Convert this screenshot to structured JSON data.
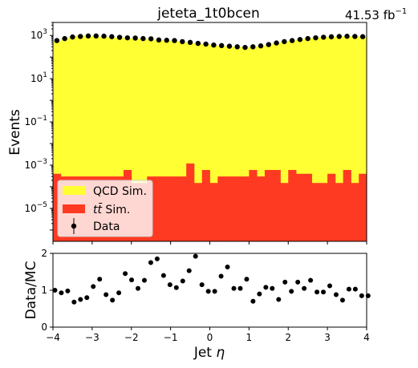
{
  "chart_data": {
    "type": "bar",
    "title": "jeteta_1t0bcen",
    "lumi_text": "41.53 fb",
    "lumi_unit_sup": "−1",
    "x": {
      "label": "Jet",
      "label_symbol": "η",
      "range": [
        -4,
        4
      ],
      "ticks": [
        -4,
        -3,
        -2,
        -1,
        0,
        1,
        2,
        3,
        4
      ],
      "tick_labels": [
        "−4",
        "−3",
        "−2",
        "−1",
        "0",
        "1",
        "2",
        "3",
        "4"
      ],
      "bin_edges_start": -4,
      "bin_width": 0.2
    },
    "main_panel": {
      "ylabel": "Events",
      "yscale": "log",
      "ylim": [
        3e-07,
        4000
      ],
      "ytick_exponents": [
        -5,
        -3,
        -1,
        1,
        3
      ],
      "ytick_base": "10",
      "series": [
        {
          "name": "QCD Sim.",
          "kind": "stacked-bar",
          "color": "#ffff33",
          "values": [
            550,
            700,
            900,
            1000,
            950,
            900,
            850,
            800,
            780,
            750,
            720,
            680,
            650,
            600,
            580,
            550,
            500,
            450,
            420,
            400,
            350,
            330,
            300,
            300,
            280,
            300,
            330,
            380,
            450,
            520,
            580,
            650,
            720,
            780,
            830,
            870,
            900,
            920,
            930,
            900
          ]
        },
        {
          "name": "tt̄ Sim.",
          "kind": "stacked-bar",
          "color": "#ff3a22",
          "values": [
            0.0004,
            0.0003,
            0.0003,
            0.0003,
            0.0003,
            0.0003,
            0.0003,
            0.0003,
            0.0003,
            0.0006,
            0.00015,
            0.00015,
            0.0003,
            0.0003,
            0.0003,
            0.0003,
            0.0003,
            0.0012,
            0.00015,
            0.0006,
            0.00015,
            0.0003,
            0.0003,
            0.0003,
            0.0003,
            0.0006,
            0.0003,
            0.0006,
            0.0006,
            0.00015,
            0.0006,
            0.0004,
            0.0004,
            0.00015,
            0.00015,
            0.0004,
            0.00015,
            0.0006,
            0.00015,
            0.0004
          ]
        },
        {
          "name": "Data",
          "kind": "points",
          "color": "#000000",
          "values": [
            580,
            720,
            850,
            900,
            950,
            950,
            930,
            880,
            820,
            780,
            760,
            720,
            700,
            620,
            600,
            580,
            520,
            480,
            430,
            400,
            360,
            340,
            320,
            300,
            280,
            300,
            330,
            380,
            450,
            520,
            580,
            650,
            720,
            780,
            830,
            870,
            900,
            920,
            900,
            880
          ]
        }
      ],
      "legend": {
        "position": "lower-left",
        "entries": [
          {
            "label": "QCD Sim.",
            "symbol": "patch",
            "color": "#ffff33"
          },
          {
            "label": "Sim.",
            "prefix": "tt̄",
            "symbol": "patch",
            "color": "#ff3a22"
          },
          {
            "label": "Data",
            "symbol": "errorbar",
            "color": "#000000"
          }
        ]
      }
    },
    "ratio_panel": {
      "ylabel": "Data/MC",
      "ylim": [
        0,
        2
      ],
      "yticks": [
        0,
        1,
        2
      ],
      "values": [
        1.0,
        0.93,
        0.98,
        0.68,
        0.75,
        0.8,
        1.1,
        1.3,
        0.88,
        0.73,
        0.93,
        1.45,
        1.28,
        1.05,
        1.27,
        1.75,
        1.85,
        1.4,
        1.15,
        1.07,
        1.25,
        1.53,
        1.92,
        1.15,
        0.97,
        0.97,
        1.38,
        1.63,
        1.05,
        1.05,
        1.3,
        0.7,
        0.9,
        1.08,
        1.05,
        0.75,
        1.22,
        0.97,
        1.22,
        1.05,
        1.27,
        0.95,
        0.95,
        1.12,
        0.88,
        0.73,
        1.03,
        1.03,
        0.85,
        0.85
      ],
      "x_start": -3.95,
      "x_step": 0.163,
      "errors": 0.06
    }
  }
}
